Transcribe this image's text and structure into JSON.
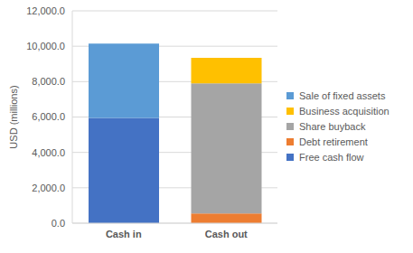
{
  "chart_data": {
    "type": "bar",
    "stacked": true,
    "grid": true,
    "legend": "right",
    "y_label": "USD (millions)",
    "categories": [
      "Cash in",
      "Cash out"
    ],
    "ylim": [
      0,
      12000
    ],
    "yticks": [
      {
        "value": 0,
        "label": "0.0"
      },
      {
        "value": 2000,
        "label": "2,000.0"
      },
      {
        "value": 4000,
        "label": "4,000.0"
      },
      {
        "value": 6000,
        "label": "6,000.0"
      },
      {
        "value": 8000,
        "label": "8,000.0"
      },
      {
        "value": 10000,
        "label": "10,000.0"
      },
      {
        "value": 12000,
        "label": "12,000.0"
      }
    ],
    "series": [
      {
        "name": "Free cash flow",
        "color": "#4472c4",
        "values": [
          5950,
          null
        ]
      },
      {
        "name": "Debt retirement",
        "color": "#ed7d31",
        "values": [
          null,
          550
        ]
      },
      {
        "name": "Share buyback",
        "color": "#a5a5a5",
        "values": [
          null,
          7350
        ]
      },
      {
        "name": "Business acquisition",
        "color": "#ffc000",
        "values": [
          null,
          1450
        ]
      },
      {
        "name": "Sale of fixed assets",
        "color": "#5b9bd5",
        "values": [
          4200,
          null
        ]
      }
    ]
  }
}
